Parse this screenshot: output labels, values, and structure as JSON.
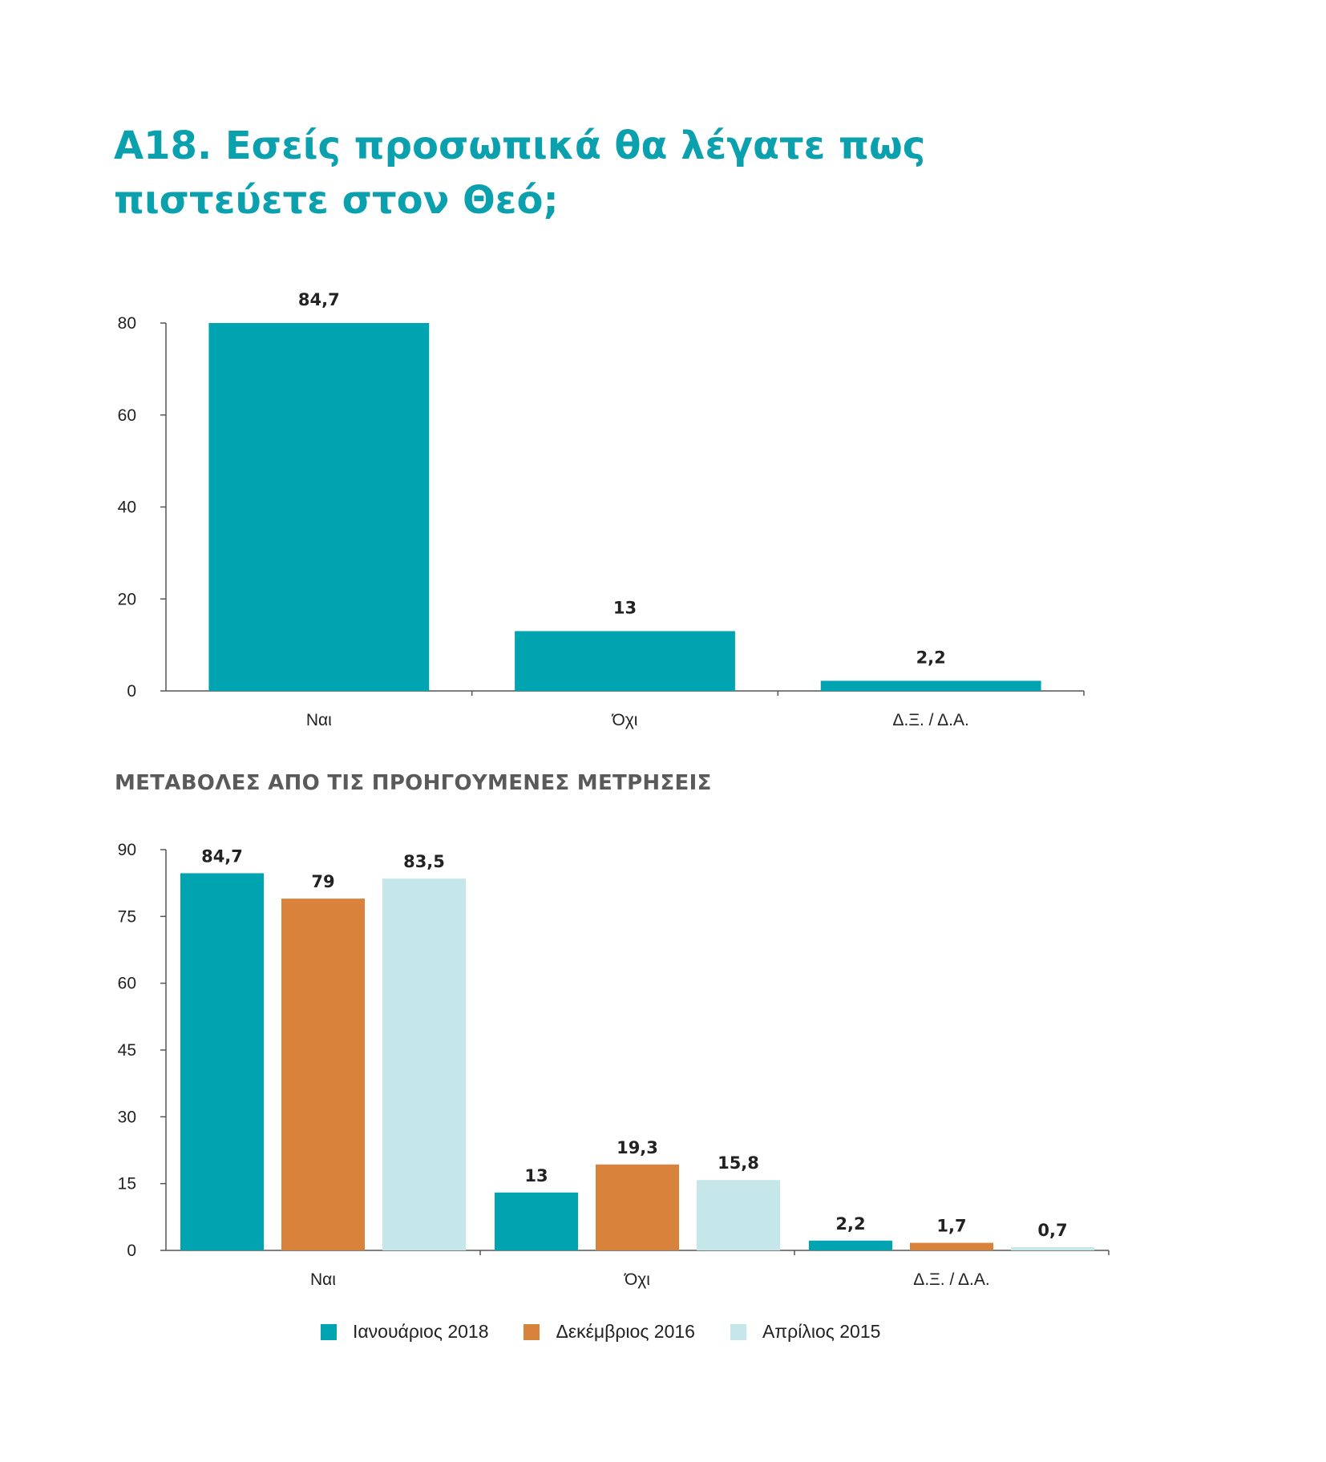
{
  "title_lines": [
    "Α18. Εσείς προσωπικά θα λέγατε πως",
    "πιστεύετε στον Θεό;"
  ],
  "subtitle": "ΜΕΤΑΒΟΛΕΣ ΑΠΟ ΤΙΣ ΠΡΟΗΓΟΥΜΕΝΕΣ ΜΕΤΡΗΣΕΙΣ",
  "colors": {
    "title": "#0aa0ad",
    "jan2018": "#00a3b0",
    "dec2016": "#d9823b",
    "apr2015": "#c6e7ea",
    "axis": "#555555"
  },
  "chart_data": [
    {
      "type": "bar",
      "categories": [
        "Ναι",
        "Όχι",
        "Δ.Ξ. / Δ.Α."
      ],
      "values": [
        84.7,
        13,
        2.2
      ],
      "data_labels": [
        "84,7",
        "13",
        "2,2"
      ],
      "yticks": [
        0,
        20,
        40,
        60,
        80
      ],
      "ylim": [
        0,
        80
      ],
      "grid": false
    },
    {
      "type": "bar",
      "categories": [
        "Ναι",
        "Όχι",
        "Δ.Ξ. / Δ.Α."
      ],
      "series": [
        {
          "name": "Ιανουάριος 2018",
          "values": [
            84.7,
            13,
            2.2
          ],
          "data_labels": [
            "84,7",
            "13",
            "2,2"
          ],
          "color": "#00a3b0"
        },
        {
          "name": "Δεκέμβριος 2016",
          "values": [
            79,
            19.3,
            1.7
          ],
          "data_labels": [
            "79",
            "19,3",
            "1,7"
          ],
          "color": "#d9823b"
        },
        {
          "name": "Απρίλιος 2015",
          "values": [
            83.5,
            15.8,
            0.7
          ],
          "data_labels": [
            "83,5",
            "15,8",
            "0,7"
          ],
          "color": "#c6e7ea"
        }
      ],
      "yticks": [
        0,
        15,
        30,
        45,
        60,
        75,
        90
      ],
      "ylim": [
        0,
        90
      ],
      "grid": false,
      "legend_position": "bottom"
    }
  ]
}
